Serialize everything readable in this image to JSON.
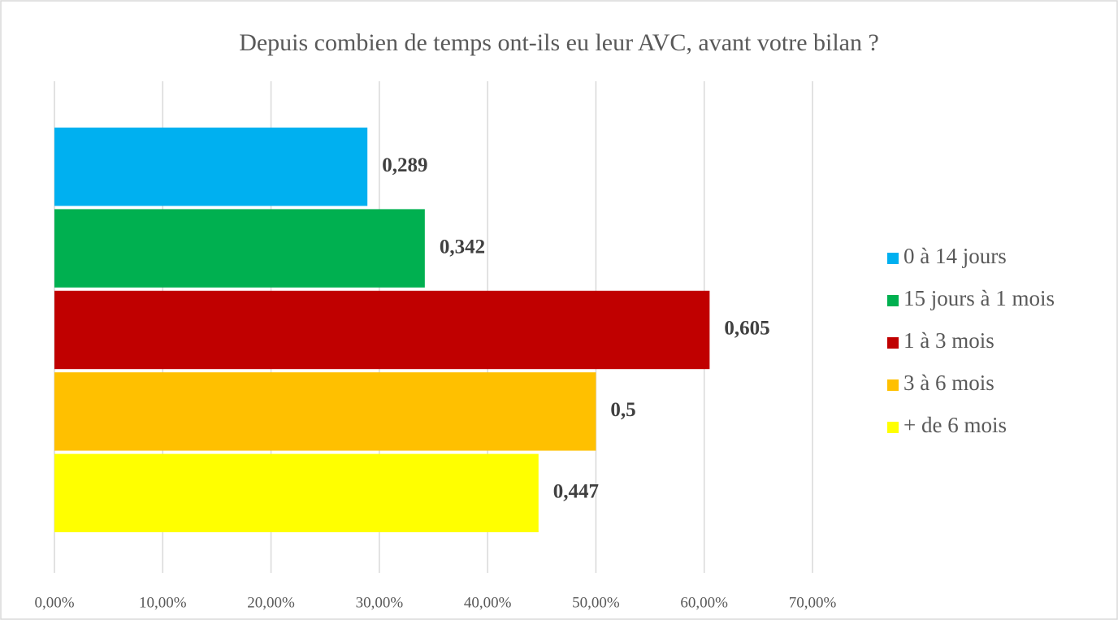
{
  "chart_data": {
    "type": "barh",
    "title": "Depuis combien de temps ont-ils eu leur AVC, avant votre bilan ?",
    "series": [
      {
        "name": "0 à 14 jours",
        "color": "#00b0f0",
        "values": [
          28.9
        ],
        "value_labels": [
          "0,289"
        ]
      },
      {
        "name": "15 jours à 1 mois",
        "color": "#00b050",
        "values": [
          34.2
        ],
        "value_labels": [
          "0,342"
        ]
      },
      {
        "name": "1 à 3 mois",
        "color": "#c00000",
        "values": [
          60.5
        ],
        "value_labels": [
          "0,605"
        ]
      },
      {
        "name": "3 à 6 mois",
        "color": "#ffc000",
        "values": [
          50
        ],
        "value_labels": [
          "0,5"
        ]
      },
      {
        "name": "+ de 6 mois",
        "color": "#ffff00",
        "values": [
          44.7
        ],
        "value_labels": [
          "0,447"
        ]
      }
    ],
    "xlim": [
      0,
      70
    ],
    "xticks": [
      {
        "value": 0,
        "label": "0,00%"
      },
      {
        "value": 10,
        "label": "10,00%"
      },
      {
        "value": 20,
        "label": "20,00%"
      },
      {
        "value": 30,
        "label": "30,00%"
      },
      {
        "value": 40,
        "label": "40,00%"
      },
      {
        "value": 50,
        "label": "50,00%"
      },
      {
        "value": 60,
        "label": "60,00%"
      },
      {
        "value": 70,
        "label": "70,00%"
      }
    ],
    "grid": true,
    "legend": "right"
  }
}
